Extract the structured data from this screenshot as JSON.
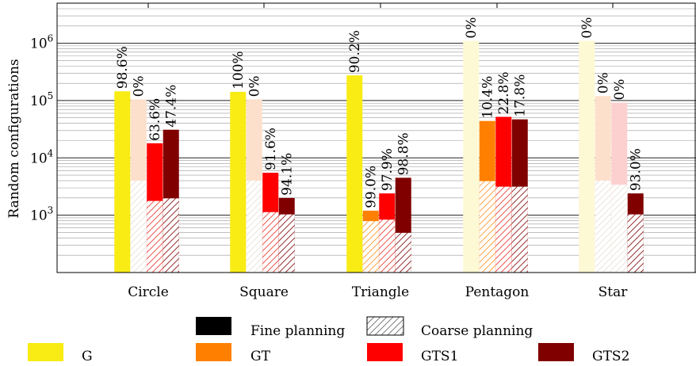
{
  "chart_data": {
    "type": "bar",
    "ylabel": "Random configurations",
    "yscale": "log",
    "ylim": [
      100,
      5000000
    ],
    "yticks": [
      {
        "value": 1000,
        "base": "10",
        "exp": "3"
      },
      {
        "value": 10000,
        "base": "10",
        "exp": "4"
      },
      {
        "value": 100000,
        "base": "10",
        "exp": "5"
      },
      {
        "value": 1000000,
        "base": "10",
        "exp": "6"
      }
    ],
    "grid": true,
    "categories": [
      "Circle",
      "Square",
      "Triangle",
      "Pentagon",
      "Star"
    ],
    "series": [
      {
        "name": "G",
        "color": "#f8ec14",
        "values": [
          145000,
          142000,
          275000,
          1100000,
          1100000
        ],
        "coarse": [
          null,
          null,
          null,
          null,
          null
        ],
        "labels": [
          "98.6%",
          "100%",
          "90.2%",
          "0%",
          "0%"
        ],
        "faded": [
          false,
          false,
          false,
          true,
          true
        ]
      },
      {
        "name": "GT",
        "color": "#ff8000",
        "values": [
          105000,
          105000,
          1200,
          44000,
          120000
        ],
        "coarse": [
          4000,
          4000,
          800,
          4000,
          4000
        ],
        "labels": [
          "0%",
          "0%",
          "99.0%",
          "10.4%",
          "0%"
        ],
        "faded": [
          true,
          true,
          false,
          false,
          true
        ]
      },
      {
        "name": "GTS1",
        "color": "#ff0000",
        "values": [
          18000,
          5500,
          2400,
          52000,
          92000
        ],
        "coarse": [
          1800,
          1150,
          850,
          3200,
          3400
        ],
        "labels": [
          "63.6%",
          "91.6%",
          "97.9%",
          "22.8%",
          "0%"
        ],
        "faded": [
          false,
          false,
          false,
          false,
          true
        ]
      },
      {
        "name": "GTS2",
        "color": "#800000",
        "values": [
          31000,
          2000,
          4500,
          47000,
          2400
        ],
        "coarse": [
          2000,
          1050,
          500,
          3200,
          1050
        ],
        "labels": [
          "47.4%",
          "94.1%",
          "98.8%",
          "17.8%",
          "93.0%"
        ],
        "faded": [
          false,
          false,
          false,
          false,
          false
        ]
      }
    ],
    "legend": {
      "placement": "bottom",
      "fine_label": "Fine planning",
      "coarse_label": "Coarse planning"
    }
  }
}
